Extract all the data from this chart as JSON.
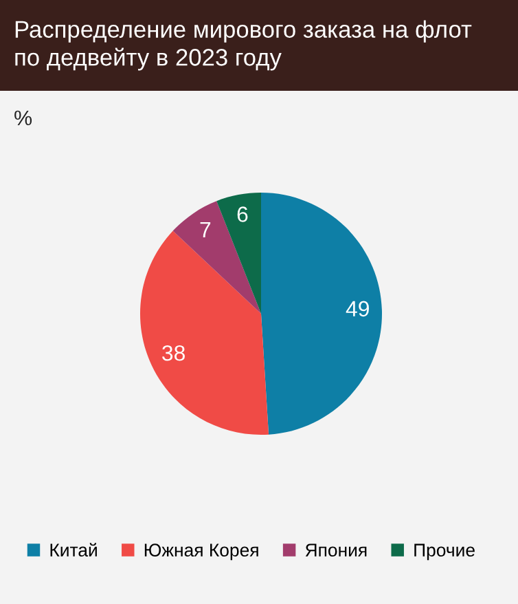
{
  "chart_data": {
    "type": "pie",
    "title": "Распределение мирового заказа на флот\nпо дедвейту в 2023 году",
    "subtitle": "%",
    "categories": [
      "Китай",
      "Южная Корея",
      "Япония",
      "Прочие"
    ],
    "values": [
      49,
      38,
      7,
      6
    ],
    "colors": [
      "#0e7fa6",
      "#f04b46",
      "#a23c6c",
      "#0d6b4a"
    ],
    "data_labels": true,
    "legend": "bottom"
  }
}
